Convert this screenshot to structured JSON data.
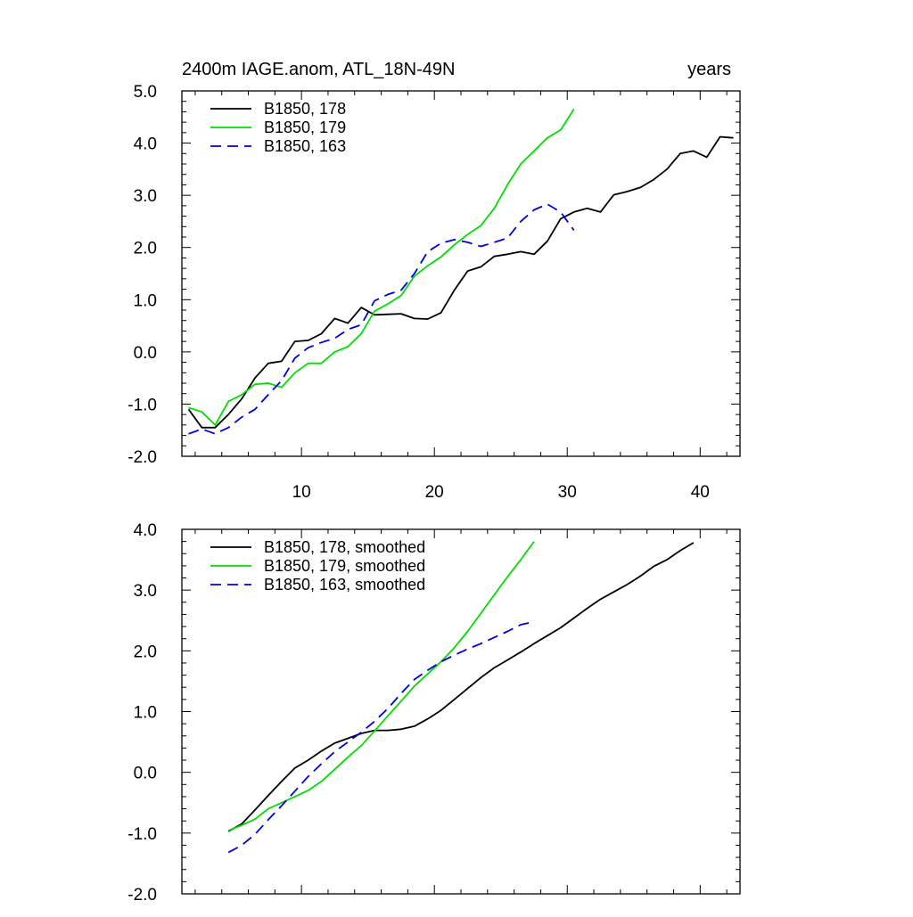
{
  "chart_data": [
    {
      "type": "line",
      "title_left": "2400m IAGE.anom, ATL_18N-49N",
      "title_right": "years",
      "xlabel": "",
      "ylabel": "",
      "xlim": [
        1,
        43
      ],
      "ylim": [
        -2.0,
        5.0
      ],
      "xticks": [
        10,
        20,
        30,
        40
      ],
      "xtick_labels": [
        "10",
        "20",
        "30",
        "40"
      ],
      "yticks": [
        -2.0,
        -1.0,
        0.0,
        1.0,
        2.0,
        3.0,
        4.0,
        5.0
      ],
      "ytick_labels": [
        "-2.0",
        "-1.0",
        "0.0",
        "1.0",
        "2.0",
        "3.0",
        "4.0",
        "5.0"
      ],
      "legend": "top-left",
      "series": [
        {
          "name": "B1850, 178",
          "color": "#000000",
          "dash": "solid",
          "x": [
            1.5,
            2.5,
            3.5,
            4.5,
            5.5,
            6.5,
            7.5,
            8.5,
            9.5,
            10.5,
            11.5,
            12.5,
            13.5,
            14.5,
            15.5,
            16.5,
            17.5,
            18.5,
            19.5,
            20.5,
            21.5,
            22.5,
            23.5,
            24.5,
            25.5,
            26.5,
            27.5,
            28.5,
            29.5,
            30.5,
            31.5,
            32.5,
            33.5,
            34.5,
            35.5,
            36.5,
            37.5,
            38.5,
            39.5,
            40.5,
            41.5,
            42.5
          ],
          "y": [
            -1.1,
            -1.45,
            -1.45,
            -1.2,
            -0.9,
            -0.5,
            -0.22,
            -0.18,
            0.2,
            0.22,
            0.35,
            0.64,
            0.55,
            0.85,
            0.71,
            0.72,
            0.73,
            0.64,
            0.63,
            0.75,
            1.18,
            1.55,
            1.63,
            1.83,
            1.87,
            1.92,
            1.87,
            2.12,
            2.55,
            2.68,
            2.75,
            2.68,
            3.01,
            3.07,
            3.15,
            3.3,
            3.5,
            3.8,
            3.85,
            3.73,
            4.12,
            4.1
          ]
        },
        {
          "name": "B1850, 179",
          "color": "#00dd00",
          "dash": "solid",
          "x": [
            1.5,
            2.5,
            3.5,
            4.5,
            5.5,
            6.5,
            7.5,
            8.5,
            9.5,
            10.5,
            11.5,
            12.5,
            13.5,
            14.5,
            15.5,
            16.5,
            17.5,
            18.5,
            19.5,
            20.5,
            21.5,
            22.5,
            23.5,
            24.5,
            25.5,
            26.5,
            27.5,
            28.5,
            29.5,
            30.5
          ],
          "y": [
            -1.07,
            -1.15,
            -1.4,
            -0.95,
            -0.82,
            -0.62,
            -0.6,
            -0.68,
            -0.4,
            -0.22,
            -0.22,
            0.0,
            0.1,
            0.35,
            0.78,
            0.92,
            1.08,
            1.45,
            1.65,
            1.82,
            2.05,
            2.25,
            2.42,
            2.75,
            3.2,
            3.6,
            3.85,
            4.1,
            4.25,
            4.65
          ]
        },
        {
          "name": "B1850, 163",
          "color": "#0000dd",
          "dash": "dashed",
          "x": [
            1.5,
            2.5,
            3.5,
            4.5,
            5.5,
            6.5,
            7.5,
            8.5,
            9.5,
            10.5,
            11.5,
            12.5,
            13.5,
            14.5,
            15.5,
            16.5,
            17.5,
            18.5,
            19.5,
            20.5,
            21.5,
            22.5,
            23.5,
            24.5,
            25.5,
            26.5,
            27.5,
            28.5,
            29.5,
            30.5
          ],
          "y": [
            -1.57,
            -1.48,
            -1.57,
            -1.45,
            -1.25,
            -1.1,
            -0.82,
            -0.55,
            -0.12,
            0.08,
            0.18,
            0.26,
            0.43,
            0.52,
            0.98,
            1.1,
            1.18,
            1.5,
            1.92,
            2.08,
            2.15,
            2.1,
            2.02,
            2.1,
            2.18,
            2.5,
            2.72,
            2.83,
            2.68,
            2.33
          ]
        }
      ]
    },
    {
      "type": "line",
      "title_left": "",
      "title_right": "",
      "xlabel": "",
      "ylabel": "",
      "xlim": [
        1,
        43
      ],
      "ylim": [
        -2.0,
        4.0
      ],
      "xticks": [
        10,
        20,
        30,
        40
      ],
      "xtick_labels": [],
      "yticks": [
        -2.0,
        -1.0,
        0.0,
        1.0,
        2.0,
        3.0,
        4.0
      ],
      "ytick_labels": [
        "-2.0",
        "-1.0",
        "0.0",
        "1.0",
        "2.0",
        "3.0",
        "4.0"
      ],
      "legend": "top-left",
      "series": [
        {
          "name": "B1850, 178, smoothed",
          "color": "#000000",
          "dash": "solid",
          "x": [
            4.5,
            5.5,
            6.5,
            7.5,
            8.5,
            9.5,
            10.5,
            11.5,
            12.5,
            13.5,
            14.5,
            15.5,
            16.5,
            17.5,
            18.5,
            19.5,
            20.5,
            21.5,
            22.5,
            23.5,
            24.5,
            25.5,
            26.5,
            27.5,
            28.5,
            29.5,
            30.5,
            31.5,
            32.5,
            33.5,
            34.5,
            35.5,
            36.5,
            37.5,
            38.5,
            39.5
          ],
          "y": [
            -0.97,
            -0.85,
            -0.62,
            -0.38,
            -0.15,
            0.07,
            0.2,
            0.35,
            0.48,
            0.56,
            0.64,
            0.69,
            0.69,
            0.71,
            0.76,
            0.88,
            1.02,
            1.2,
            1.38,
            1.56,
            1.72,
            1.85,
            1.98,
            2.12,
            2.25,
            2.38,
            2.54,
            2.7,
            2.85,
            2.97,
            3.09,
            3.23,
            3.39,
            3.5,
            3.65,
            3.78
          ]
        },
        {
          "name": "B1850, 179, smoothed",
          "color": "#00dd00",
          "dash": "solid",
          "x": [
            4.5,
            5.5,
            6.5,
            7.5,
            8.5,
            9.5,
            10.5,
            11.5,
            12.5,
            13.5,
            14.5,
            15.5,
            16.5,
            17.5,
            18.5,
            19.5,
            20.5,
            21.5,
            22.5,
            23.5,
            24.5,
            25.5,
            26.5,
            27.5
          ],
          "y": [
            -0.96,
            -0.87,
            -0.77,
            -0.6,
            -0.5,
            -0.4,
            -0.3,
            -0.15,
            0.05,
            0.25,
            0.44,
            0.68,
            0.93,
            1.17,
            1.42,
            1.62,
            1.82,
            2.05,
            2.32,
            2.62,
            2.92,
            3.22,
            3.5,
            3.8
          ]
        },
        {
          "name": "B1850, 163, smoothed",
          "color": "#0000dd",
          "dash": "dashed",
          "x": [
            4.5,
            5.5,
            6.5,
            7.5,
            8.5,
            9.5,
            10.5,
            11.5,
            12.5,
            13.5,
            14.5,
            15.5,
            16.5,
            17.5,
            18.5,
            19.5,
            20.5,
            21.5,
            22.5,
            23.5,
            24.5,
            25.5,
            26.5,
            27.5
          ],
          "y": [
            -1.32,
            -1.2,
            -1.02,
            -0.78,
            -0.55,
            -0.31,
            -0.07,
            0.14,
            0.34,
            0.5,
            0.66,
            0.84,
            1.05,
            1.3,
            1.53,
            1.68,
            1.82,
            1.93,
            2.03,
            2.12,
            2.22,
            2.32,
            2.43,
            2.48
          ]
        }
      ]
    }
  ]
}
